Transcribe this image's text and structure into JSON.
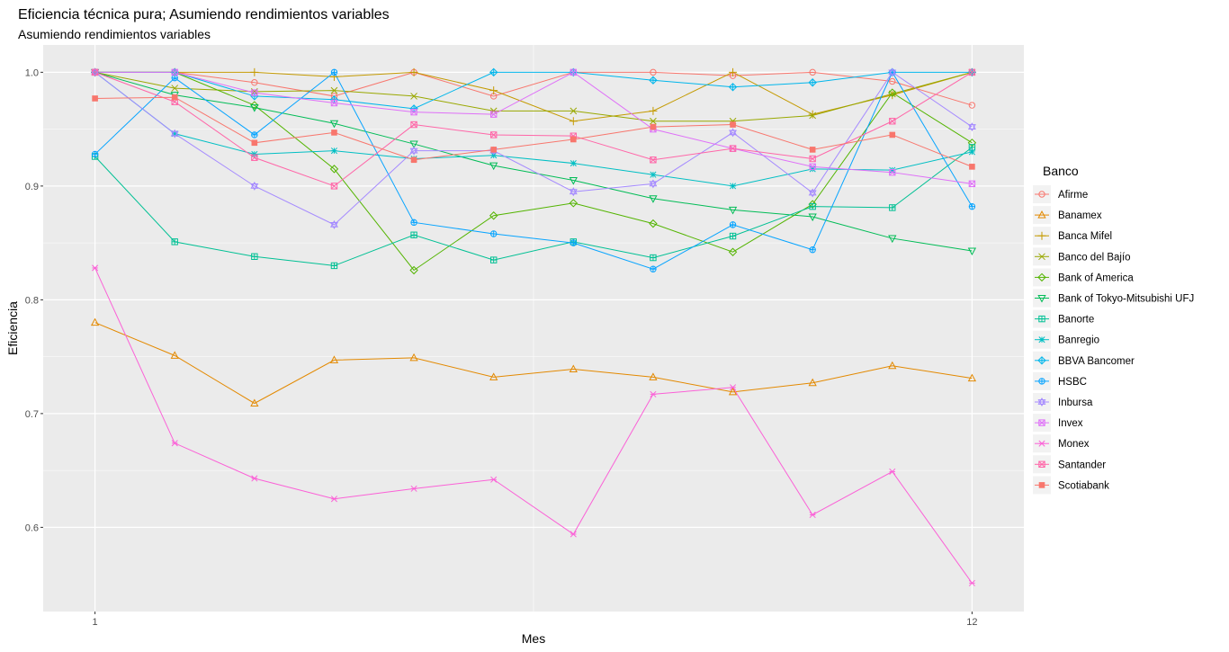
{
  "chart_data": {
    "type": "line",
    "title": "Eficiencia técnica pura; Asumiendo rendimientos variables",
    "subtitle": "Asumiendo rendimientos variables",
    "xlabel": "Mes",
    "ylabel": "Eficiencia",
    "x": [
      1,
      2,
      3,
      4,
      5,
      6,
      7,
      8,
      9,
      10,
      11,
      12
    ],
    "x_ticks": [
      "1",
      "12"
    ],
    "y_ticks": [
      "0.6",
      "0.7",
      "0.8",
      "0.9",
      "1.0"
    ],
    "xlim": [
      0.35,
      12.65
    ],
    "ylim": [
      0.526,
      1.024
    ],
    "legend_title": "Banco",
    "legend_position": "right",
    "grid": true,
    "series": [
      {
        "name": "Afirme",
        "color": "#F8766D",
        "shape": "circle",
        "values": [
          1.0,
          1.0,
          0.991,
          0.979,
          1.0,
          0.979,
          1.0,
          1.0,
          0.997,
          1.0,
          0.992,
          0.971
        ]
      },
      {
        "name": "Banamex",
        "color": "#E38900",
        "shape": "triangle-up",
        "values": [
          0.78,
          0.751,
          0.709,
          0.747,
          0.749,
          0.732,
          0.739,
          0.732,
          0.719,
          0.727,
          0.742,
          0.731
        ]
      },
      {
        "name": "Banca Mifel",
        "color": "#C49A00",
        "shape": "plus",
        "values": [
          1.0,
          1.0,
          1.0,
          0.996,
          1.0,
          0.984,
          0.957,
          0.966,
          1.0,
          0.963,
          0.98,
          1.0
        ]
      },
      {
        "name": "Banco del Bajío",
        "color": "#99A800",
        "shape": "cross",
        "values": [
          1.0,
          0.986,
          0.983,
          0.984,
          0.979,
          0.966,
          0.966,
          0.957,
          0.957,
          0.962,
          0.981,
          1.0
        ]
      },
      {
        "name": "Bank of America",
        "color": "#53B400",
        "shape": "diamond",
        "values": [
          1.0,
          1.0,
          0.971,
          0.915,
          0.826,
          0.874,
          0.885,
          0.867,
          0.842,
          0.884,
          0.982,
          0.938
        ]
      },
      {
        "name": "Bank of Tokyo-Mitsubishi UFJ",
        "color": "#00BC56",
        "shape": "triangle-down",
        "values": [
          1.0,
          0.98,
          0.969,
          0.955,
          0.937,
          0.918,
          0.905,
          0.889,
          0.879,
          0.873,
          0.854,
          0.843
        ]
      },
      {
        "name": "Banorte",
        "color": "#00C094",
        "shape": "square-cross",
        "values": [
          0.926,
          0.851,
          0.838,
          0.83,
          0.857,
          0.835,
          0.851,
          0.837,
          0.856,
          0.882,
          0.881,
          0.934
        ]
      },
      {
        "name": "Banregio",
        "color": "#00BFC4",
        "shape": "asterisk",
        "values": [
          1.0,
          0.946,
          0.928,
          0.931,
          0.924,
          0.927,
          0.92,
          0.91,
          0.9,
          0.915,
          0.914,
          0.93
        ]
      },
      {
        "name": "BBVA Bancomer",
        "color": "#00B6EB",
        "shape": "diamond-plus",
        "values": [
          1.0,
          1.0,
          0.979,
          0.976,
          0.968,
          1.0,
          1.0,
          0.993,
          0.987,
          0.991,
          1.0,
          1.0
        ]
      },
      {
        "name": "HSBC",
        "color": "#06A4FF",
        "shape": "circle-plus",
        "values": [
          0.928,
          0.995,
          0.945,
          1.0,
          0.868,
          0.858,
          0.85,
          0.827,
          0.866,
          0.844,
          1.0,
          0.882
        ]
      },
      {
        "name": "Inbursa",
        "color": "#A58AFF",
        "shape": "star",
        "values": [
          1.0,
          0.946,
          0.9,
          0.866,
          0.931,
          0.931,
          0.895,
          0.902,
          0.947,
          0.894,
          1.0,
          0.952
        ]
      },
      {
        "name": "Invex",
        "color": "#DF70F8",
        "shape": "square-cross-diag",
        "values": [
          1.0,
          1.0,
          0.982,
          0.973,
          0.965,
          0.963,
          1.0,
          0.95,
          0.933,
          0.917,
          0.912,
          0.902
        ]
      },
      {
        "name": "Monex",
        "color": "#FB61D7",
        "shape": "asterisk-x",
        "values": [
          0.828,
          0.674,
          0.643,
          0.625,
          0.634,
          0.642,
          0.594,
          0.717,
          0.723,
          0.611,
          0.649,
          0.551
        ]
      },
      {
        "name": "Santander",
        "color": "#FF66A8",
        "shape": "square-x",
        "values": [
          1.0,
          0.974,
          0.925,
          0.9,
          0.954,
          0.945,
          0.944,
          0.923,
          0.933,
          0.924,
          0.957,
          1.0
        ]
      },
      {
        "name": "Scotiabank",
        "color": "#F8766D",
        "shape": "square-filled",
        "values": [
          0.977,
          0.978,
          0.938,
          0.947,
          0.923,
          0.932,
          0.941,
          0.952,
          0.954,
          0.932,
          0.945,
          0.917
        ]
      }
    ]
  }
}
